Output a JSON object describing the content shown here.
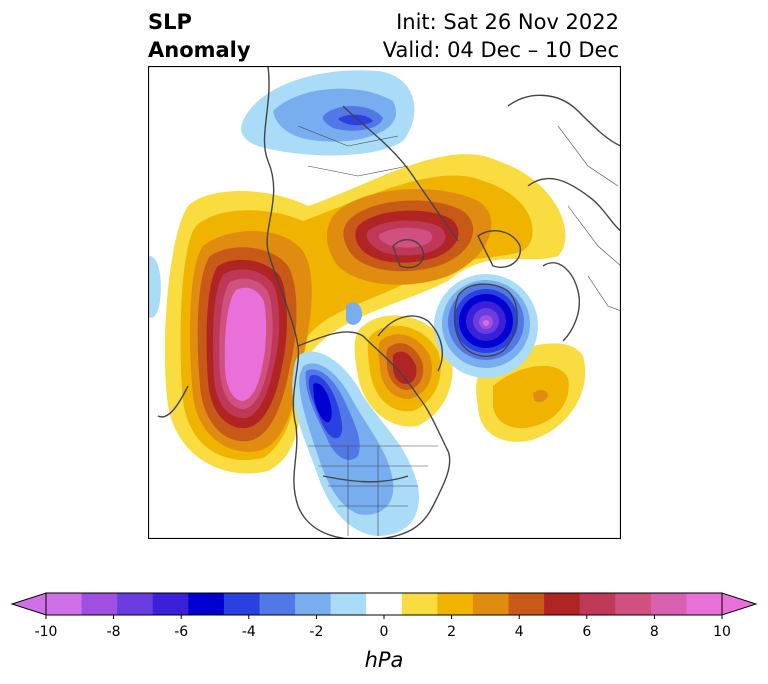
{
  "title": {
    "left_line1": "SLP",
    "left_line2": "Anomaly",
    "right_line1": "Init: Sat 26 Nov 2022",
    "right_line2": "Valid: 04 Dec – 10 Dec"
  },
  "colorbar": {
    "units": "hPa",
    "ticks": [
      "-10",
      "-8",
      "-6",
      "-4",
      "-2",
      "0",
      "2",
      "4",
      "6",
      "8",
      "10"
    ],
    "tick_values": [
      -10,
      -8,
      -6,
      -4,
      -2,
      0,
      2,
      4,
      6,
      8,
      10
    ],
    "colors": [
      "#d070e8",
      "#a050e0",
      "#6a3de0",
      "#3a20d8",
      "#0000d0",
      "#2a40e0",
      "#5278e8",
      "#78aef0",
      "#aadcf8",
      "#ffffff",
      "#f8dc40",
      "#f0b400",
      "#e08c10",
      "#c85a18",
      "#b02424",
      "#c03858",
      "#d05080",
      "#d860b0",
      "#e870d8"
    ]
  }
}
